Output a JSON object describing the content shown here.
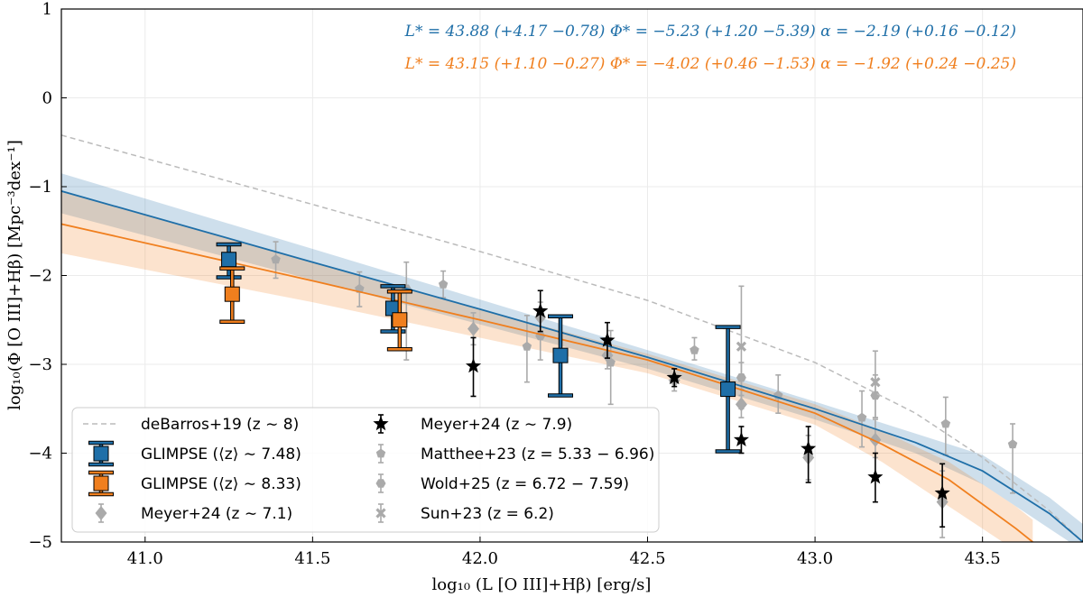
{
  "chart_data": {
    "type": "scatter",
    "xlabel": "log₁₀ (L [O III]+Hβ) [erg/s]",
    "ylabel": "log₁₀(Φ [O III]+Hβ) [Mpc⁻³dex⁻¹]",
    "xlim": [
      40.75,
      43.8
    ],
    "ylim": [
      -5,
      1
    ],
    "xticks": [
      41.0,
      41.5,
      42.0,
      42.5,
      43.0,
      43.5
    ],
    "xtick_labels": [
      "41.0",
      "41.5",
      "42.0",
      "42.5",
      "43.0",
      "43.5"
    ],
    "yticks": [
      -5,
      -4,
      -3,
      -2,
      -1,
      0,
      1
    ],
    "ytick_labels": [
      "−5",
      "−4",
      "−3",
      "−2",
      "−1",
      "0",
      "1"
    ],
    "grid": true,
    "annotations": [
      {
        "text": "L* = 43.88 (+4.17 −0.78)  Φ* = −5.23 (+1.20 −5.39)  α = −2.19 (+0.16 −0.12)",
        "color": "#1f6fa8"
      },
      {
        "text": "L* = 43.15 (+1.10 −0.27)  Φ* = −4.02 (+0.46 −1.53)  α = −1.92 (+0.24 −0.25)",
        "color": "#f07f1e"
      }
    ],
    "series": [
      {
        "name": "deBarros+19 (z ∼ 8)",
        "kind": "dashed-line",
        "color": "#bbbbbb",
        "x": [
          40.75,
          41.5,
          42.0,
          42.5,
          43.0,
          43.3,
          43.5,
          43.7,
          43.8
        ],
        "y": [
          -0.42,
          -1.2,
          -1.73,
          -2.28,
          -2.98,
          -3.55,
          -4.05,
          -4.65,
          -5.0
        ]
      },
      {
        "name": "GLIMPSE fit (⟨z⟩ ∼ 7.48)",
        "kind": "fit",
        "color": "#1f6fa8",
        "x": [
          40.75,
          41.5,
          42.0,
          42.5,
          43.0,
          43.3,
          43.5,
          43.7,
          43.8
        ],
        "y": [
          -1.05,
          -1.85,
          -2.38,
          -2.92,
          -3.5,
          -3.88,
          -4.2,
          -4.68,
          -5.0
        ],
        "band_upper": [
          -0.85,
          -1.7,
          -2.27,
          -2.84,
          -3.42,
          -3.78,
          -4.02,
          -4.5,
          -4.8
        ],
        "band_lower": [
          -1.3,
          -2.05,
          -2.55,
          -3.05,
          -3.62,
          -4.0,
          -4.35,
          -4.85,
          -5.1
        ]
      },
      {
        "name": "GLIMPSE fit (⟨z⟩ ∼ 8.33)",
        "kind": "fit",
        "color": "#f07f1e",
        "x": [
          40.75,
          41.5,
          42.0,
          42.5,
          43.0,
          43.2,
          43.4,
          43.6,
          43.65
        ],
        "y": [
          -1.42,
          -2.06,
          -2.5,
          -2.95,
          -3.55,
          -3.9,
          -4.3,
          -4.85,
          -5.0
        ],
        "band_upper": [
          -1.05,
          -1.85,
          -2.38,
          -2.88,
          -3.45,
          -3.75,
          -4.1,
          -4.6,
          -4.75
        ],
        "band_lower": [
          -1.75,
          -2.3,
          -2.7,
          -3.1,
          -3.68,
          -4.1,
          -4.6,
          -5.1,
          -5.2
        ]
      },
      {
        "name": "GLIMPSE (⟨z⟩ ∼ 7.48)",
        "kind": "square",
        "color": "#1f6fa8",
        "points": [
          {
            "x": 41.25,
            "y": -1.82,
            "lo": -2.02,
            "hi": -1.65
          },
          {
            "x": 41.74,
            "y": -2.37,
            "lo": -2.63,
            "hi": -2.12
          },
          {
            "x": 42.24,
            "y": -2.9,
            "lo": -3.35,
            "hi": -2.46
          },
          {
            "x": 42.74,
            "y": -3.28,
            "lo": -3.98,
            "hi": -2.58
          }
        ]
      },
      {
        "name": "GLIMPSE (⟨z⟩ ∼ 8.33)",
        "kind": "square",
        "color": "#f07f1e",
        "points": [
          {
            "x": 41.26,
            "y": -2.21,
            "lo": -2.52,
            "hi": -1.92
          },
          {
            "x": 41.76,
            "y": -2.5,
            "lo": -2.83,
            "hi": -2.18
          }
        ]
      },
      {
        "name": "Meyer+24 (z ∼ 7.1)",
        "kind": "diamond",
        "color": "#aaaaaa",
        "points": [
          {
            "x": 41.98,
            "y": -2.6,
            "lo": -2.78,
            "hi": -2.42
          },
          {
            "x": 42.18,
            "y": -2.47,
            "lo": -2.63,
            "hi": -2.3
          },
          {
            "x": 42.38,
            "y": -2.9,
            "lo": -3.05,
            "hi": -2.72
          },
          {
            "x": 42.58,
            "y": -3.18,
            "lo": -3.3,
            "hi": -3.05
          },
          {
            "x": 42.78,
            "y": -3.45,
            "lo": -3.6,
            "hi": -3.28
          },
          {
            "x": 42.98,
            "y": -4.05,
            "lo": -4.3,
            "hi": -3.8
          },
          {
            "x": 43.18,
            "y": -3.85,
            "lo": -4.05,
            "hi": -3.62
          },
          {
            "x": 43.38,
            "y": -4.55,
            "lo": -4.95,
            "hi": -4.2
          }
        ]
      },
      {
        "name": "Meyer+24 (z ∼ 7.9)",
        "kind": "star",
        "color": "#000000",
        "points": [
          {
            "x": 41.98,
            "y": -3.02,
            "lo": -3.36,
            "hi": -2.7
          },
          {
            "x": 42.18,
            "y": -2.4,
            "lo": -2.63,
            "hi": -2.17
          },
          {
            "x": 42.38,
            "y": -2.73,
            "lo": -2.93,
            "hi": -2.53
          },
          {
            "x": 42.58,
            "y": -3.15,
            "lo": -3.25,
            "hi": -3.05
          },
          {
            "x": 42.78,
            "y": -3.85,
            "lo": -4.0,
            "hi": -3.7
          },
          {
            "x": 42.98,
            "y": -3.95,
            "lo": -4.33,
            "hi": -3.7
          },
          {
            "x": 43.18,
            "y": -4.27,
            "lo": -4.55,
            "hi": -4.0
          },
          {
            "x": 43.38,
            "y": -4.45,
            "lo": -4.83,
            "hi": -4.12
          }
        ]
      },
      {
        "name": "Matthee+23 (z = 5.33 − 6.96)",
        "kind": "pentagon",
        "color": "#aaaaaa",
        "points": [
          {
            "x": 41.39,
            "y": -1.82,
            "lo": -2.03,
            "hi": -1.62
          },
          {
            "x": 41.64,
            "y": -2.15,
            "lo": -2.35,
            "hi": -1.96
          },
          {
            "x": 41.89,
            "y": -2.1,
            "lo": -2.25,
            "hi": -1.95
          },
          {
            "x": 42.14,
            "y": -2.8,
            "lo": -3.2,
            "hi": -2.45
          },
          {
            "x": 42.39,
            "y": -2.98,
            "lo": -3.45,
            "hi": -2.62
          },
          {
            "x": 42.64,
            "y": -2.84,
            "lo": -2.95,
            "hi": -2.7
          },
          {
            "x": 42.89,
            "y": -3.35,
            "lo": -3.55,
            "hi": -3.12
          },
          {
            "x": 43.14,
            "y": -3.6,
            "lo": -3.93,
            "hi": -3.3
          },
          {
            "x": 43.39,
            "y": -3.67,
            "lo": -4.02,
            "hi": -3.37
          },
          {
            "x": 43.59,
            "y": -3.9,
            "lo": -4.45,
            "hi": -3.67
          }
        ]
      },
      {
        "name": "Wold+25 (z = 6.72 − 7.59)",
        "kind": "hexagon",
        "color": "#aaaaaa",
        "points": [
          {
            "x": 41.78,
            "y": -2.15,
            "lo": -2.95,
            "hi": -1.85
          },
          {
            "x": 42.18,
            "y": -2.68,
            "lo": -2.95,
            "hi": -2.42
          },
          {
            "x": 42.78,
            "y": -3.15,
            "lo": -3.35,
            "hi": -2.98
          },
          {
            "x": 43.18,
            "y": -3.35,
            "lo": -3.6,
            "hi": -3.12
          }
        ]
      },
      {
        "name": "Sun+23 (z = 6.2)",
        "kind": "cross",
        "color": "#aaaaaa",
        "points": [
          {
            "x": 42.78,
            "y": -2.8,
            "lo": -3.5,
            "hi": -2.12
          },
          {
            "x": 43.18,
            "y": -3.2,
            "lo": -3.6,
            "hi": -2.85
          }
        ]
      }
    ]
  },
  "legend": {
    "col1": [
      {
        "label": "deBarros+19 (z ∼ 8)",
        "marker": "dashed",
        "color": "#bbbbbb"
      },
      {
        "label": "GLIMPSE (⟨z⟩ ∼ 7.48)",
        "marker": "square",
        "color": "#1f6fa8"
      },
      {
        "label": "GLIMPSE (⟨z⟩ ∼ 8.33)",
        "marker": "square",
        "color": "#f07f1e"
      },
      {
        "label": "Meyer+24 (z ∼ 7.1)",
        "marker": "diamond",
        "color": "#aaaaaa"
      }
    ],
    "col2": [
      {
        "label": "Meyer+24 (z ∼ 7.9)",
        "marker": "star",
        "color": "#000000"
      },
      {
        "label": "Matthee+23 (z = 5.33 − 6.96)",
        "marker": "pentagon",
        "color": "#aaaaaa"
      },
      {
        "label": "Wold+25 (z = 6.72 − 7.59)",
        "marker": "hexagon",
        "color": "#aaaaaa"
      },
      {
        "label": "Sun+23 (z = 6.2)",
        "marker": "cross",
        "color": "#aaaaaa"
      }
    ]
  }
}
